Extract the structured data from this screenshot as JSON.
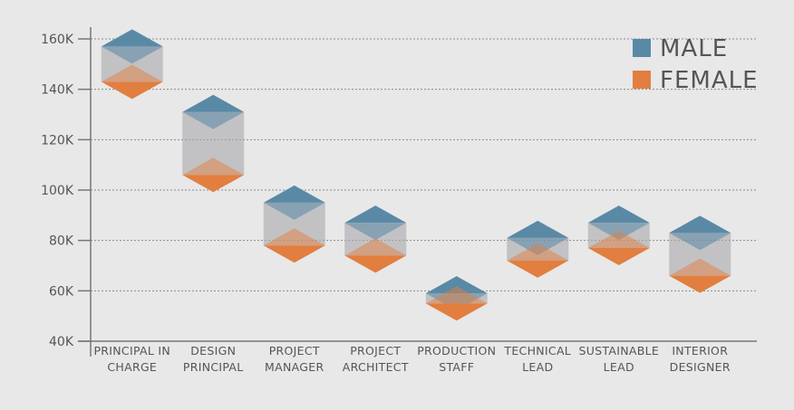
{
  "chart_data": {
    "type": "range",
    "title": "",
    "xlabel": "",
    "ylabel": "",
    "ylim": [
      40000,
      160000
    ],
    "yticks": [
      {
        "value": 40000,
        "label": "40K"
      },
      {
        "value": 60000,
        "label": "60K"
      },
      {
        "value": 80000,
        "label": "80K"
      },
      {
        "value": 100000,
        "label": "100K"
      },
      {
        "value": 120000,
        "label": "120K"
      },
      {
        "value": 140000,
        "label": "140K"
      },
      {
        "value": 160000,
        "label": "160K"
      }
    ],
    "grid": true,
    "legend_position": "top-right",
    "categories": [
      [
        "PRINCIPAL IN",
        "CHARGE"
      ],
      [
        "DESIGN",
        "PRINCIPAL"
      ],
      [
        "PROJECT",
        "MANAGER"
      ],
      [
        "PROJECT",
        "ARCHITECT"
      ],
      [
        "PRODUCTION",
        "STAFF"
      ],
      [
        "TECHNICAL",
        "LEAD"
      ],
      [
        "SUSTAINABLE",
        "LEAD"
      ],
      [
        "INTERIOR",
        "DESIGNER"
      ]
    ],
    "series": [
      {
        "name": "MALE",
        "color": "#5a89a6",
        "values": [
          157000,
          131000,
          95000,
          87000,
          59000,
          81000,
          87000,
          83000
        ]
      },
      {
        "name": "FEMALE",
        "color": "#e27e3f",
        "values": [
          143000,
          106000,
          78000,
          74000,
          55000,
          72000,
          77000,
          66000
        ]
      }
    ]
  }
}
